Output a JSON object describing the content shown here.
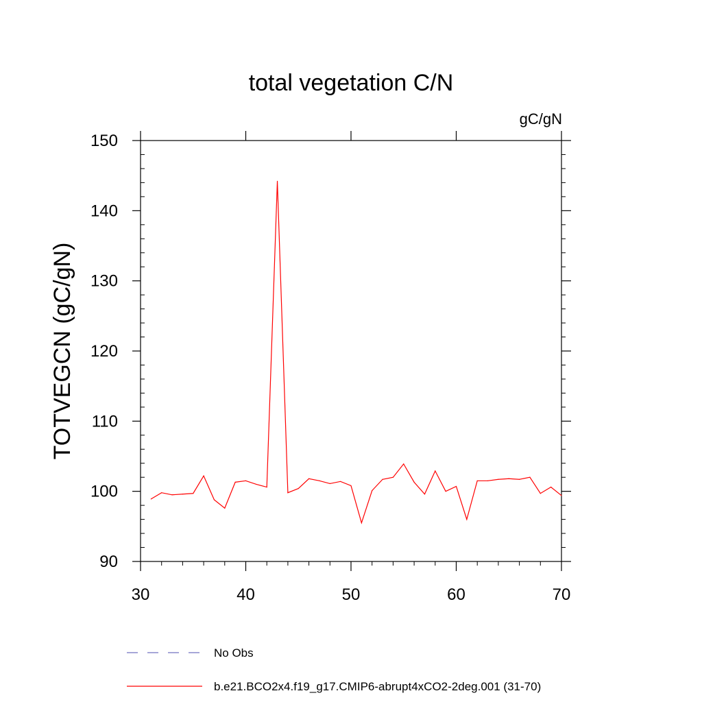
{
  "chart_data": {
    "type": "line",
    "title": "total vegetation C/N",
    "units_label": "gC/gN",
    "xlabel": "",
    "ylabel": "TOTVEGCN  (gC/gN)",
    "xlim": [
      30,
      70
    ],
    "ylim": [
      90,
      150
    ],
    "x_ticks": [
      30,
      40,
      50,
      60,
      70
    ],
    "y_ticks": [
      90,
      100,
      110,
      120,
      130,
      140,
      150
    ],
    "grid": false,
    "legend_position": "bottom",
    "series": [
      {
        "name": "b.e21.BCO2x4.f19_g17.CMIP6-abrupt4xCO2-2deg.001 (31-70)",
        "color": "#ff0000",
        "style": "solid",
        "x": [
          31,
          32,
          33,
          34,
          35,
          36,
          37,
          38,
          39,
          40,
          41,
          42,
          43,
          44,
          45,
          46,
          47,
          48,
          49,
          50,
          51,
          52,
          53,
          54,
          55,
          56,
          57,
          58,
          59,
          60,
          61,
          62,
          63,
          64,
          65,
          66,
          67,
          68,
          69,
          70
        ],
        "y": [
          98.9,
          99.8,
          99.5,
          99.6,
          99.7,
          102.2,
          98.8,
          97.6,
          101.3,
          101.5,
          101.0,
          100.6,
          144.2,
          99.8,
          100.4,
          101.8,
          101.5,
          101.1,
          101.4,
          100.8,
          95.5,
          100.1,
          101.7,
          102.0,
          103.9,
          101.3,
          99.6,
          102.9,
          100.0,
          100.7,
          96.0,
          101.5,
          101.5,
          101.7,
          101.8,
          101.7,
          102.0,
          99.7,
          100.6,
          99.4
        ]
      }
    ],
    "legend": [
      {
        "label": "No Obs",
        "color": "#7070c0",
        "style": "dashed"
      },
      {
        "label": "b.e21.BCO2x4.f19_g17.CMIP6-abrupt4xCO2-2deg.001 (31-70)",
        "color": "#ff0000",
        "style": "solid"
      }
    ]
  }
}
